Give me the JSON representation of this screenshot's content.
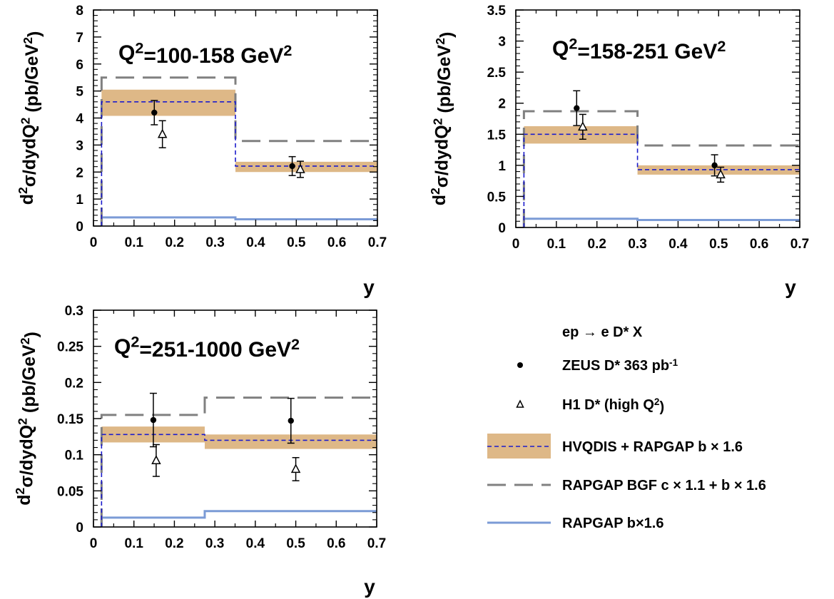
{
  "colors": {
    "band": "#deb887",
    "hvqdis_line": "#1c1ccc",
    "bgf_dash": "#808080",
    "rapgap_b": "#7b9bd6",
    "data": "#000000"
  },
  "chart_data": [
    {
      "type": "line",
      "annotation": "Q^2=100-158 GeV^2",
      "xlabel": "y",
      "ylabel": "d^2σ/dydQ^2 (pb/GeV^2)",
      "xlim": [
        0,
        0.7
      ],
      "ylim": [
        0,
        8
      ],
      "xticks": [
        0,
        0.1,
        0.2,
        0.3,
        0.4,
        0.5,
        0.6,
        0.7
      ],
      "yticks": [
        0,
        1,
        2,
        3,
        4,
        5,
        6,
        7,
        8
      ],
      "bins": [
        [
          0.02,
          0.35
        ],
        [
          0.35,
          0.7
        ]
      ],
      "hvqdis": [
        4.6,
        2.22
      ],
      "hvqdis_band": [
        [
          4.08,
          5.05
        ],
        [
          2.0,
          2.38
        ]
      ],
      "bgf": [
        5.5,
        3.15
      ],
      "rapgap_b": [
        0.32,
        0.25
      ],
      "zeus": [
        {
          "x": 0.15,
          "y": 4.2,
          "err": 0.45
        },
        {
          "x": 0.49,
          "y": 2.22,
          "err": 0.35
        }
      ],
      "h1": [
        {
          "x": 0.17,
          "y": 3.4,
          "err": 0.5
        },
        {
          "x": 0.51,
          "y": 2.1,
          "err": 0.3
        }
      ]
    },
    {
      "type": "line",
      "annotation": "Q^2=158-251 GeV^2",
      "xlabel": "y",
      "ylabel": "d^2σ/dydQ^2 (pb/GeV^2)",
      "xlim": [
        0,
        0.7
      ],
      "ylim": [
        0,
        3.5
      ],
      "xticks": [
        0,
        0.1,
        0.2,
        0.3,
        0.4,
        0.5,
        0.6,
        0.7
      ],
      "yticks": [
        0,
        0.5,
        1,
        1.5,
        2,
        2.5,
        3,
        3.5
      ],
      "bins": [
        [
          0.02,
          0.3
        ],
        [
          0.3,
          0.7
        ]
      ],
      "hvqdis": [
        1.5,
        0.93
      ],
      "hvqdis_band": [
        [
          1.35,
          1.63
        ],
        [
          0.85,
          1.0
        ]
      ],
      "bgf": [
        1.87,
        1.32
      ],
      "rapgap_b": [
        0.14,
        0.12
      ],
      "zeus": [
        {
          "x": 0.15,
          "y": 1.92,
          "err": 0.28
        },
        {
          "x": 0.49,
          "y": 1.0,
          "err": 0.17
        }
      ],
      "h1": [
        {
          "x": 0.165,
          "y": 1.62,
          "err": 0.2
        },
        {
          "x": 0.505,
          "y": 0.85,
          "err": 0.12
        }
      ]
    },
    {
      "type": "line",
      "annotation": "Q^2=251-1000 GeV^2",
      "xlabel": "y",
      "ylabel": "d^2σ/dydQ^2 (pb/GeV^2)",
      "xlim": [
        0,
        0.7
      ],
      "ylim": [
        0,
        0.3
      ],
      "xticks": [
        0,
        0.1,
        0.2,
        0.3,
        0.4,
        0.5,
        0.6,
        0.7
      ],
      "yticks": [
        0,
        0.05,
        0.1,
        0.15,
        0.2,
        0.25,
        0.3
      ],
      "bins": [
        [
          0.02,
          0.275
        ],
        [
          0.275,
          0.7
        ]
      ],
      "hvqdis": [
        0.128,
        0.12
      ],
      "hvqdis_band": [
        [
          0.117,
          0.139
        ],
        [
          0.108,
          0.128
        ]
      ],
      "bgf": [
        0.155,
        0.179
      ],
      "rapgap_b": [
        0.013,
        0.022
      ],
      "zeus": [
        {
          "x": 0.148,
          "y": 0.148,
          "err": 0.037
        },
        {
          "x": 0.488,
          "y": 0.147,
          "err": 0.031
        }
      ],
      "h1": [
        {
          "x": 0.155,
          "y": 0.092,
          "err": 0.022
        },
        {
          "x": 0.5,
          "y": 0.08,
          "err": 0.016
        }
      ]
    }
  ],
  "legend": {
    "process": "ep → e D* X",
    "zeus": "ZEUS D* 363 pb^-1",
    "h1": "H1 D* (high Q^2)",
    "hvqdis": "HVQDIS + RAPGAP b × 1.6",
    "bgf": "RAPGAP BGF c × 1.1 + b × 1.6",
    "rapgap_b": "RAPGAP b×1.6"
  }
}
